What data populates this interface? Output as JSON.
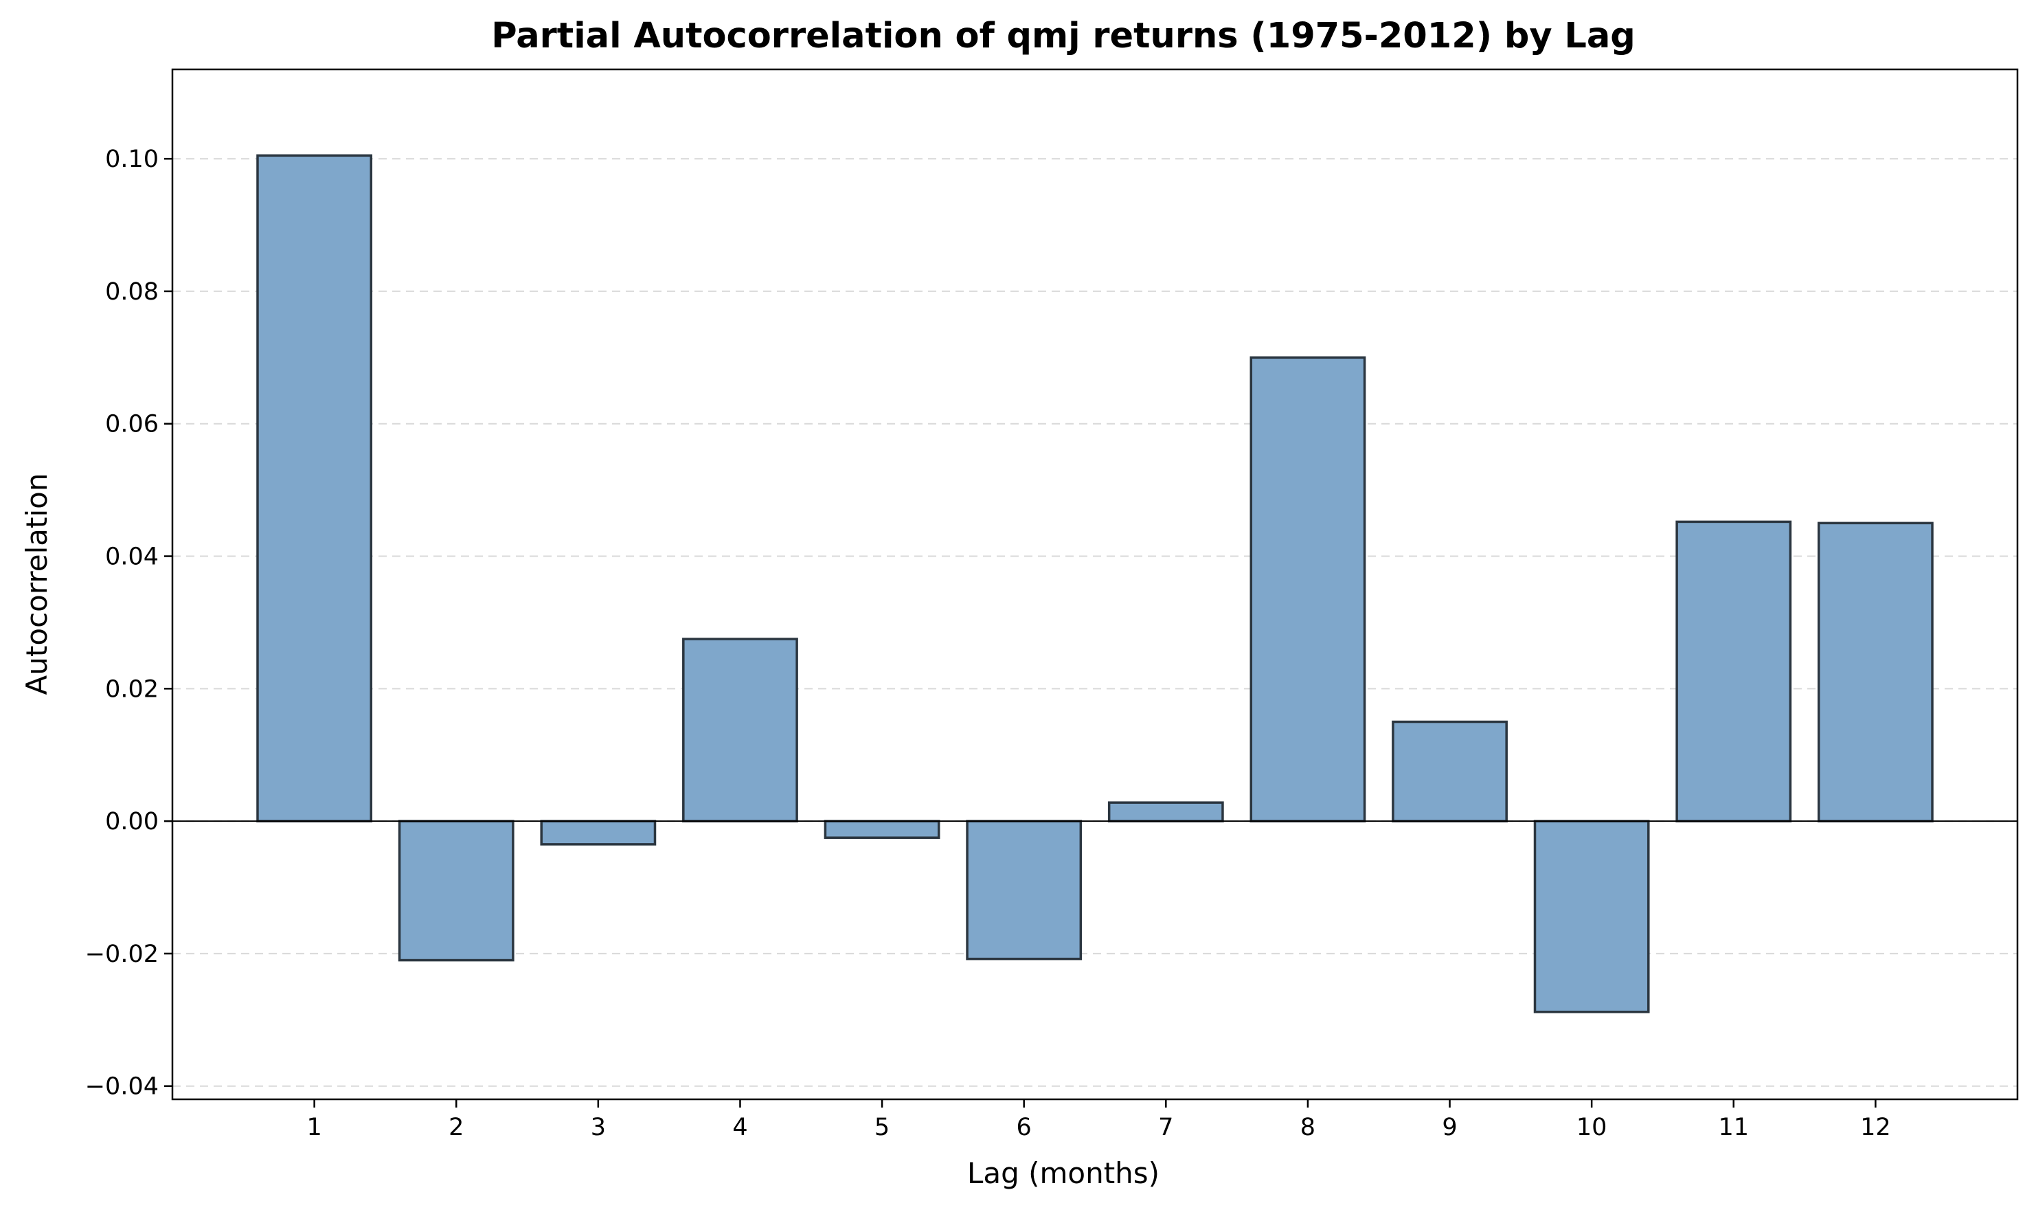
{
  "chart_data": {
    "type": "bar",
    "title": "Partial Autocorrelation of qmj returns (1975-2012) by Lag",
    "xlabel": "Lag (months)",
    "ylabel": "Autocorrelation",
    "categories": [
      "1",
      "2",
      "3",
      "4",
      "5",
      "6",
      "7",
      "8",
      "9",
      "10",
      "11",
      "12"
    ],
    "values": [
      0.1005,
      -0.021,
      -0.0035,
      0.0275,
      -0.0025,
      -0.0208,
      0.0028,
      0.07,
      0.015,
      -0.0288,
      0.0452,
      0.045
    ],
    "ylim": [
      -0.042,
      0.1135
    ],
    "xlim": [
      0.0,
      13.0
    ],
    "yticks": [
      -0.04,
      -0.02,
      0.0,
      0.02,
      0.04,
      0.06,
      0.08,
      0.1
    ],
    "ytick_labels": [
      "−0.04",
      "−0.02",
      "0.00",
      "0.02",
      "0.04",
      "0.06",
      "0.08",
      "0.10"
    ],
    "bar_color": "#7fa7cb",
    "bar_edge_color": "#2b3640",
    "grid": "horizontal-dashed",
    "zero_line": true,
    "legend": "none"
  }
}
